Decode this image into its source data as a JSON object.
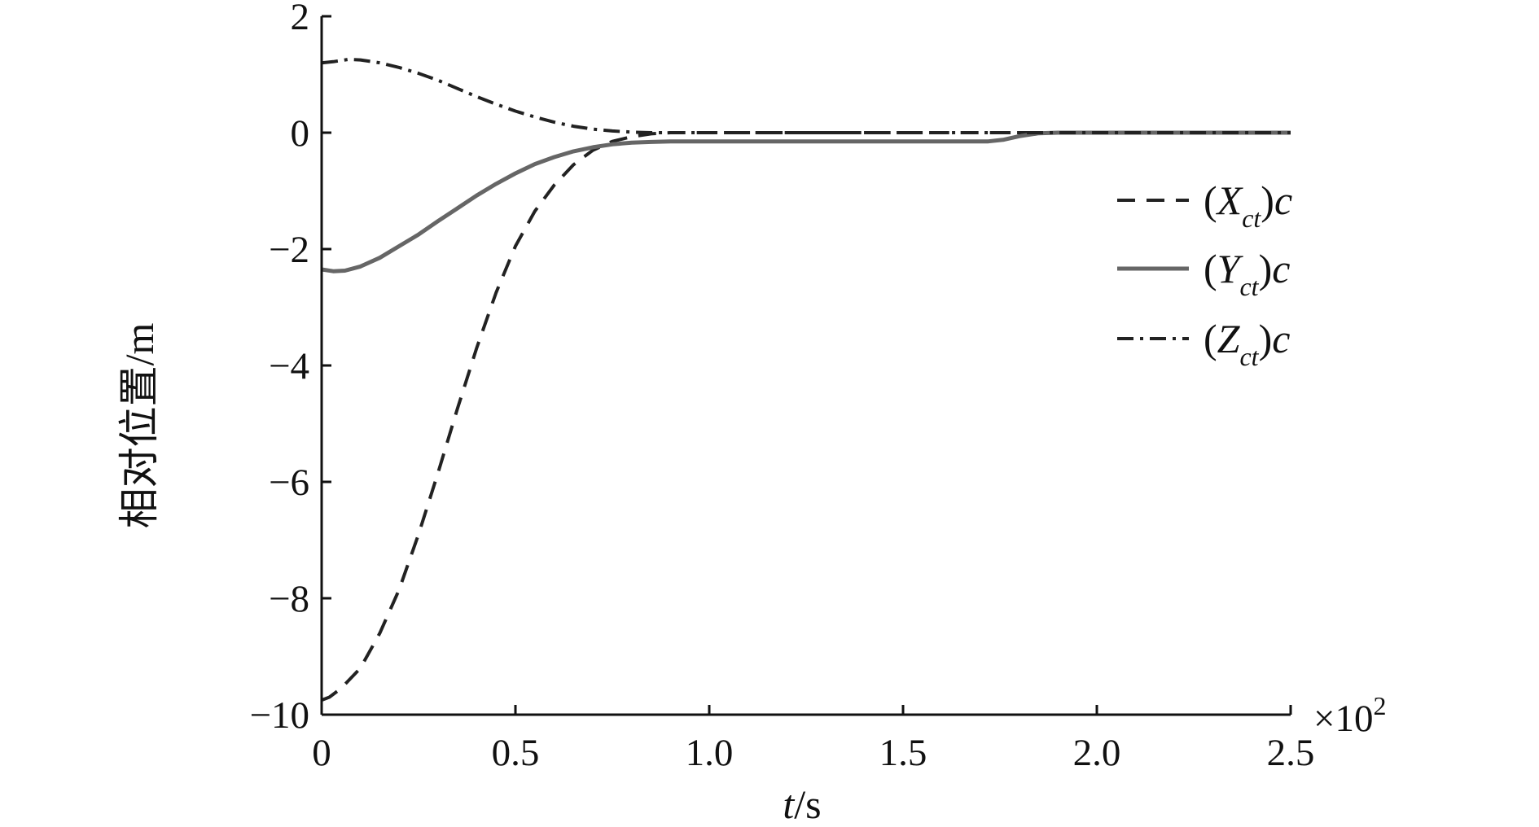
{
  "chart_data": {
    "type": "line",
    "title": "",
    "xlabel": {
      "var": "t",
      "unit": "/s"
    },
    "ylabel": "相对位置/m",
    "x_multiplier": "×10",
    "x_multiplier_exp": "2",
    "xlim": [
      0,
      2.5
    ],
    "ylim": [
      -10,
      2
    ],
    "xticks": [
      0,
      0.5,
      1.0,
      1.5,
      2.0,
      2.5
    ],
    "xtick_labels": [
      "0",
      "0.5",
      "1.0",
      "1.5",
      "2.0",
      "2.5"
    ],
    "yticks": [
      2,
      0,
      -2,
      -4,
      -6,
      -8,
      -10
    ],
    "ytick_labels": [
      "2",
      "0",
      "−2",
      "−4",
      "−6",
      "−8",
      "−10"
    ],
    "grid": false,
    "legend_position": "right",
    "series": [
      {
        "name": "(Xct)c",
        "label_main": "(X",
        "label_sub": "ct",
        "label_end": ")c",
        "style": "dashed",
        "color": "#222222",
        "x": [
          0,
          0.02,
          0.05,
          0.1,
          0.15,
          0.2,
          0.25,
          0.3,
          0.35,
          0.4,
          0.45,
          0.5,
          0.55,
          0.6,
          0.65,
          0.7,
          0.75,
          0.8,
          0.85,
          0.9,
          1.0,
          1.5,
          2.0,
          2.5
        ],
        "y": [
          -9.75,
          -9.7,
          -9.55,
          -9.2,
          -8.6,
          -7.85,
          -6.9,
          -5.85,
          -4.75,
          -3.7,
          -2.75,
          -1.95,
          -1.35,
          -0.9,
          -0.55,
          -0.3,
          -0.15,
          -0.07,
          -0.02,
          0,
          0,
          0,
          0,
          0
        ]
      },
      {
        "name": "(Yct)c",
        "label_main": "(Y",
        "label_sub": "ct",
        "label_end": ")c",
        "style": "solid",
        "color": "#666666",
        "x": [
          0,
          0.03,
          0.06,
          0.1,
          0.15,
          0.2,
          0.25,
          0.3,
          0.35,
          0.4,
          0.45,
          0.5,
          0.55,
          0.6,
          0.65,
          0.7,
          0.75,
          0.8,
          0.85,
          0.9,
          1.0,
          1.5,
          1.72,
          1.76,
          1.8,
          1.85,
          1.9,
          2.0,
          2.5
        ],
        "y": [
          -2.35,
          -2.38,
          -2.37,
          -2.3,
          -2.15,
          -1.95,
          -1.75,
          -1.52,
          -1.3,
          -1.08,
          -0.88,
          -0.7,
          -0.54,
          -0.42,
          -0.32,
          -0.25,
          -0.2,
          -0.17,
          -0.16,
          -0.15,
          -0.15,
          -0.15,
          -0.15,
          -0.12,
          -0.06,
          -0.01,
          0,
          0,
          0
        ]
      },
      {
        "name": "(Zct)c",
        "label_main": "(Z",
        "label_sub": "ct",
        "label_end": ")c",
        "style": "dashdot",
        "color": "#222222",
        "x": [
          0,
          0.03,
          0.07,
          0.1,
          0.15,
          0.2,
          0.25,
          0.3,
          0.35,
          0.4,
          0.45,
          0.5,
          0.55,
          0.6,
          0.65,
          0.7,
          0.75,
          0.8,
          0.85,
          0.9,
          1.0,
          1.5,
          2.0,
          2.5
        ],
        "y": [
          1.2,
          1.22,
          1.26,
          1.25,
          1.2,
          1.12,
          1.02,
          0.9,
          0.76,
          0.62,
          0.49,
          0.37,
          0.27,
          0.18,
          0.11,
          0.06,
          0.03,
          0.01,
          0,
          0,
          0,
          0,
          0,
          0
        ]
      }
    ]
  }
}
